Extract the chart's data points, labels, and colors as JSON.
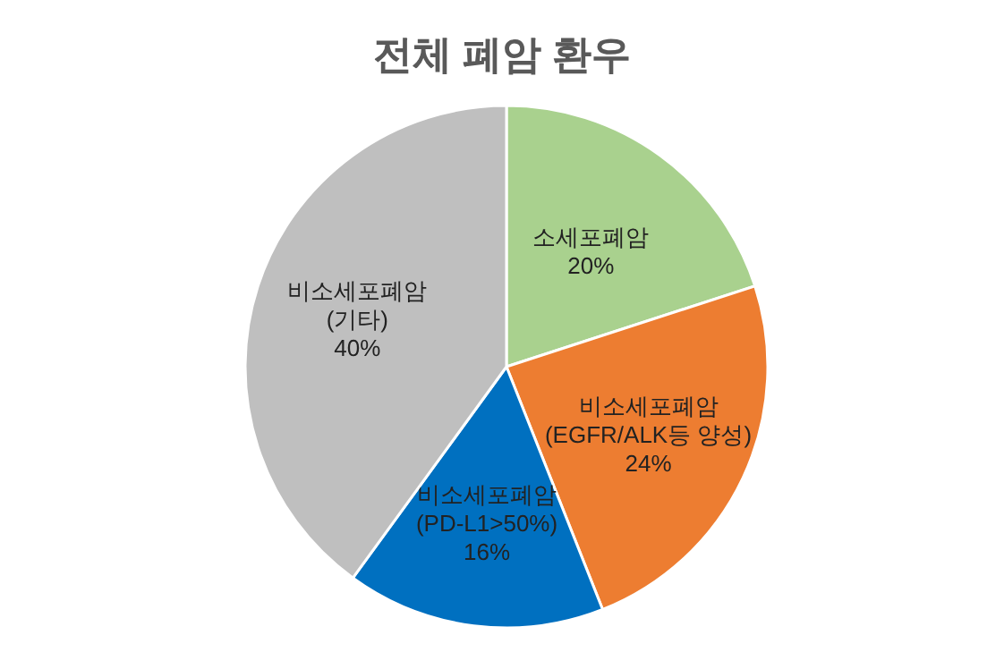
{
  "chart_data": {
    "type": "pie",
    "title": "전체 폐암 환우",
    "categories": [
      "소세포폐암",
      "비소세포폐암\n(EGFR/ALK등 양성)",
      "비소세포폐암\n(PD-L1>50%)",
      "비소세포폐암\n(기타)"
    ],
    "values": [
      20,
      24,
      16,
      40
    ],
    "value_labels": [
      "20%",
      "24%",
      "16%",
      "40%"
    ],
    "colors": [
      "#a9d18e",
      "#ed7d31",
      "#0070c0",
      "#bfbfbf"
    ]
  }
}
